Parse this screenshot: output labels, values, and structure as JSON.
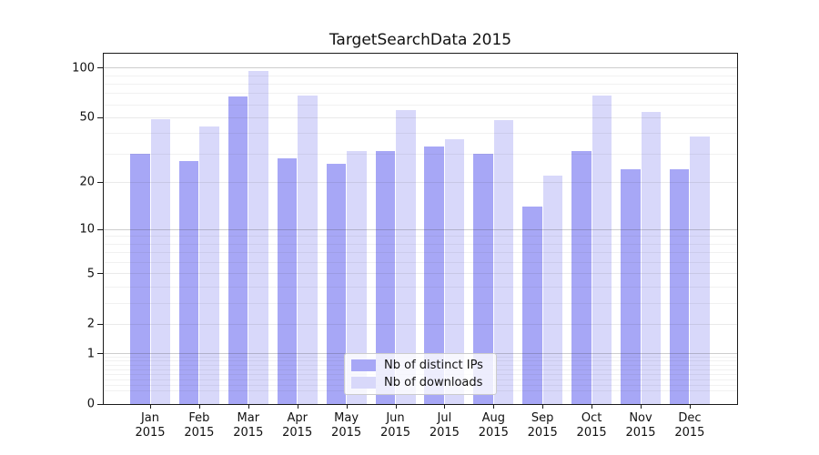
{
  "title": "TargetSearchData 2015",
  "chart_data": {
    "type": "bar",
    "title": "TargetSearchData 2015",
    "categories": [
      "Jan",
      "Feb",
      "Mar",
      "Apr",
      "May",
      "Jun",
      "Jul",
      "Aug",
      "Sep",
      "Oct",
      "Nov",
      "Dec"
    ],
    "year_label": "2015",
    "series": [
      {
        "name": "Nb of distinct IPs",
        "color": "#a7a7f6",
        "values": [
          30,
          27,
          67,
          28,
          26,
          31,
          33,
          30,
          14,
          31,
          24,
          24
        ]
      },
      {
        "name": "Nb of downloads",
        "color": "#d8d8fa",
        "values": [
          49,
          44,
          96,
          68,
          31,
          55,
          37,
          48,
          22,
          68,
          54,
          38
        ]
      }
    ],
    "yscale": "log1p",
    "ylim": [
      0,
      123
    ],
    "yticks": [
      0,
      1,
      2,
      5,
      10,
      20,
      50,
      100
    ],
    "minor_yticks": [
      0.2,
      0.3,
      0.4,
      0.5,
      0.6,
      0.7,
      0.8,
      0.9,
      3,
      4,
      6,
      7,
      8,
      9,
      30,
      40,
      60,
      70,
      80,
      90
    ],
    "grid": true,
    "legend_position": "lower center"
  },
  "colors": {
    "background": "#ffffff",
    "spine": "#1a1a1a",
    "major_grid": "#cccccc",
    "minor_grid": "#ececec"
  }
}
